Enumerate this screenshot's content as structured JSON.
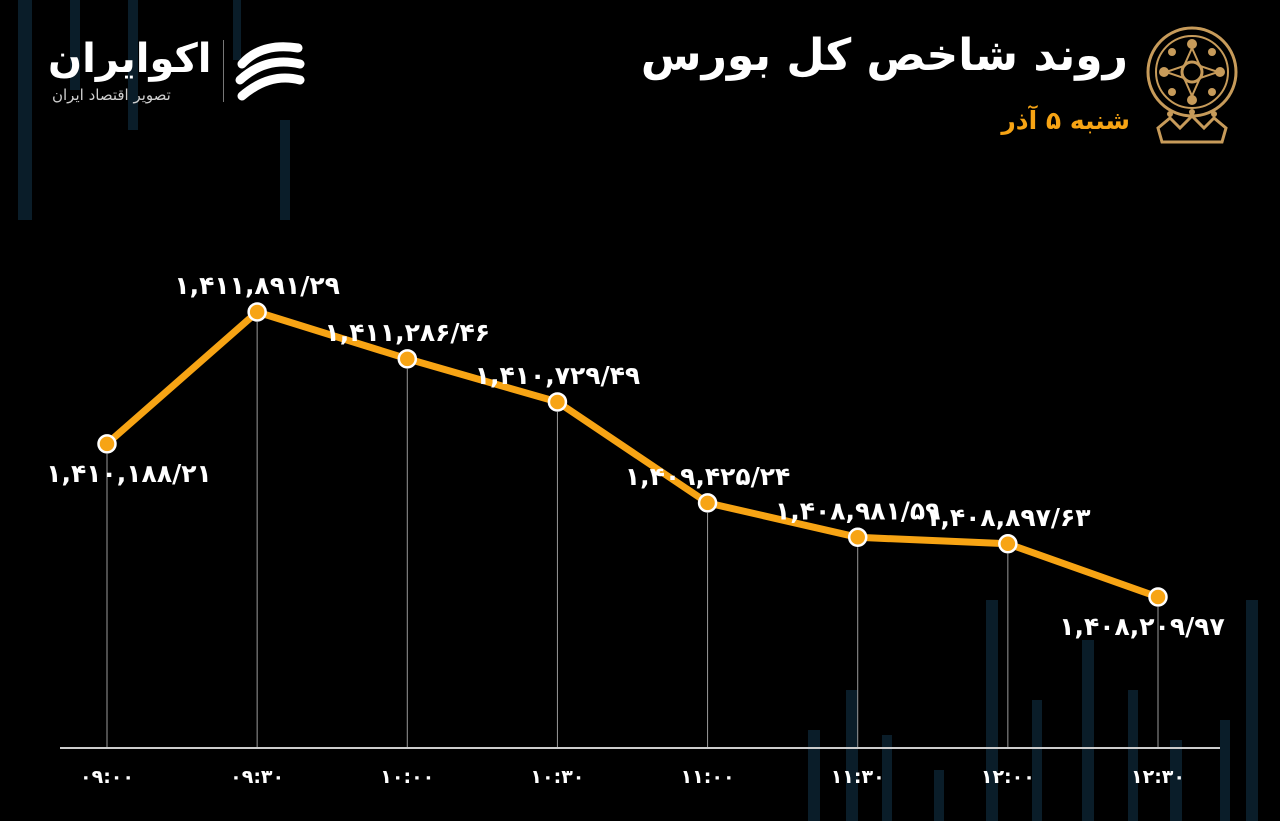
{
  "header": {
    "title": "روند شاخص کل بورس",
    "subtitle": "شنبه ۵ آذر",
    "seal_icon": "tse-seal-icon"
  },
  "brand": {
    "name": "اکوایران",
    "tagline": "تصویر اقتصاد ایران",
    "logo_icon": "ecoiran-logo-icon"
  },
  "colors": {
    "background": "#000000",
    "line": "#f7a414",
    "point": "#f7a414",
    "text": "#ffffff",
    "accent": "#f7a414"
  },
  "chart_data": {
    "type": "line",
    "categories": [
      "۰۹:۰۰",
      "۰۹:۳۰",
      "۱۰:۰۰",
      "۱۰:۳۰",
      "۱۱:۰۰",
      "۱۱:۳۰",
      "۱۲:۰۰",
      "۱۲:۳۰"
    ],
    "series": [
      {
        "values": [
          1410188.21,
          1411891.29,
          1411286.46,
          1410729.49,
          1409425.24,
          1408981.59,
          1408897.63,
          1408209.97
        ],
        "labels": [
          "۱,۴۱۰,۱۸۸/۲۱",
          "۱,۴۱۱,۸۹۱/۲۹",
          "۱,۴۱۱,۲۸۶/۴۶",
          "۱,۴۱۰,۷۲۹/۴۹",
          "۱,۴۰۹,۴۲۵/۲۴",
          "۱,۴۰۸,۹۸۱/۵۹",
          "۱,۴۰۸,۸۹۷/۶۳",
          "۱,۴۰۸,۲۰۹/۹۷"
        ]
      }
    ],
    "title": "روند شاخص کل بورس",
    "xlabel": "",
    "ylabel": "",
    "ylim": [
      1408000,
      1412000
    ],
    "grid": false,
    "legend": "none"
  }
}
